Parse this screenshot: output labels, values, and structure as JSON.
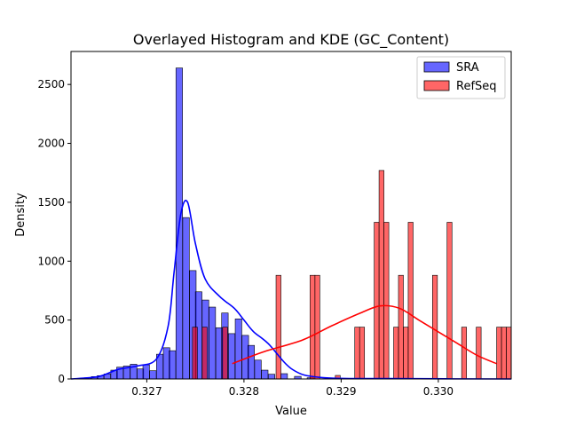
{
  "chart_data": {
    "type": "histogram",
    "title": "Overlayed Histogram and KDE (GC_Content)",
    "xlabel": "Value",
    "ylabel": "Density",
    "xlim": [
      0.32622,
      0.33075
    ],
    "ylim": [
      0,
      2780
    ],
    "xticks": [
      0.327,
      0.328,
      0.329,
      0.33
    ],
    "xtick_labels": [
      "0.327",
      "0.328",
      "0.329",
      "0.330"
    ],
    "yticks": [
      0,
      500,
      1000,
      1500,
      2000,
      2500
    ],
    "ytick_labels": [
      "0",
      "500",
      "1000",
      "1500",
      "2000",
      "2500"
    ],
    "grid": false,
    "legend": {
      "position": "top-right",
      "entries": [
        "SRA",
        "RefSeq"
      ]
    },
    "series": [
      {
        "name": "SRA",
        "color": "#0000ff",
        "bin_width": 6.75e-05,
        "bins": [
          {
            "x0": 0.32636,
            "v": 10
          },
          {
            "x0": 0.32643,
            "v": 20
          },
          {
            "x0": 0.32649,
            "v": 28
          },
          {
            "x0": 0.32656,
            "v": 42
          },
          {
            "x0": 0.32663,
            "v": 75
          },
          {
            "x0": 0.32669,
            "v": 100
          },
          {
            "x0": 0.32676,
            "v": 110
          },
          {
            "x0": 0.32683,
            "v": 125
          },
          {
            "x0": 0.3269,
            "v": 85
          },
          {
            "x0": 0.32696,
            "v": 120
          },
          {
            "x0": 0.32703,
            "v": 70
          },
          {
            "x0": 0.3271,
            "v": 210
          },
          {
            "x0": 0.32717,
            "v": 265
          },
          {
            "x0": 0.32723,
            "v": 240
          },
          {
            "x0": 0.3273,
            "v": 2640
          },
          {
            "x0": 0.32737,
            "v": 1370
          },
          {
            "x0": 0.32744,
            "v": 920
          },
          {
            "x0": 0.3275,
            "v": 740
          },
          {
            "x0": 0.32757,
            "v": 670
          },
          {
            "x0": 0.32764,
            "v": 610
          },
          {
            "x0": 0.32771,
            "v": 435
          },
          {
            "x0": 0.32777,
            "v": 560
          },
          {
            "x0": 0.32784,
            "v": 385
          },
          {
            "x0": 0.32791,
            "v": 510
          },
          {
            "x0": 0.32798,
            "v": 370
          },
          {
            "x0": 0.32804,
            "v": 285
          },
          {
            "x0": 0.32811,
            "v": 160
          },
          {
            "x0": 0.32818,
            "v": 75
          },
          {
            "x0": 0.32825,
            "v": 40
          },
          {
            "x0": 0.32838,
            "v": 45
          },
          {
            "x0": 0.32852,
            "v": 22
          },
          {
            "x0": 0.32865,
            "v": 10
          }
        ],
        "kde": {
          "x": [
            0.32622,
            0.3265,
            0.3267,
            0.3269,
            0.3271,
            0.32722,
            0.32728,
            0.32735,
            0.32742,
            0.3275,
            0.3276,
            0.32775,
            0.3279,
            0.328,
            0.3281,
            0.32825,
            0.3285,
            0.3288,
            0.3295,
            0.33075
          ],
          "y": [
            0,
            20,
            80,
            110,
            170,
            450,
            900,
            1400,
            1500,
            1150,
            850,
            700,
            600,
            500,
            400,
            300,
            80,
            12,
            3,
            0
          ]
        }
      },
      {
        "name": "RefSeq",
        "color": "#ff0000",
        "bin_width": 5.05e-05,
        "bins": [
          {
            "x0": 0.32747,
            "v": 440
          },
          {
            "x0": 0.32757,
            "v": 440
          },
          {
            "x0": 0.32778,
            "v": 440
          },
          {
            "x0": 0.32833,
            "v": 880
          },
          {
            "x0": 0.32868,
            "v": 880
          },
          {
            "x0": 0.32873,
            "v": 880
          },
          {
            "x0": 0.32894,
            "v": 30
          },
          {
            "x0": 0.32914,
            "v": 440
          },
          {
            "x0": 0.32919,
            "v": 440
          },
          {
            "x0": 0.32934,
            "v": 1330
          },
          {
            "x0": 0.32939,
            "v": 1770
          },
          {
            "x0": 0.32944,
            "v": 1330
          },
          {
            "x0": 0.32954,
            "v": 440
          },
          {
            "x0": 0.32959,
            "v": 880
          },
          {
            "x0": 0.32964,
            "v": 440
          },
          {
            "x0": 0.32969,
            "v": 1330
          },
          {
            "x0": 0.32994,
            "v": 880
          },
          {
            "x0": 0.33009,
            "v": 1330
          },
          {
            "x0": 0.33024,
            "v": 440
          },
          {
            "x0": 0.33039,
            "v": 440
          },
          {
            "x0": 0.3306,
            "v": 440
          },
          {
            "x0": 0.33065,
            "v": 440
          },
          {
            "x0": 0.3307,
            "v": 440
          }
        ],
        "kde": {
          "x": [
            0.32788,
            0.3282,
            0.3286,
            0.3289,
            0.3292,
            0.3294,
            0.3296,
            0.3298,
            0.33,
            0.3302,
            0.3304,
            0.3306
          ],
          "y": [
            130,
            230,
            330,
            450,
            560,
            620,
            600,
            500,
            400,
            300,
            200,
            130
          ]
        }
      }
    ]
  }
}
